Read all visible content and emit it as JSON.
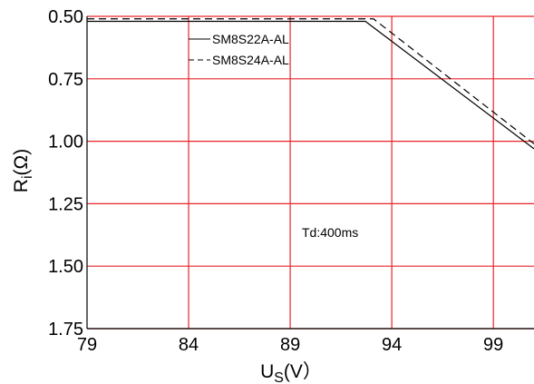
{
  "chart_data": {
    "type": "line",
    "title": "",
    "xlabel_main": "U",
    "xlabel_sub": "S",
    "xlabel_unit": "(V）",
    "ylabel_main": "R",
    "ylabel_sub": "i",
    "ylabel_unit": "(Ω)",
    "xlim": [
      79,
      101
    ],
    "ylim": [
      0.5,
      1.75
    ],
    "y_inverted": true,
    "grid": true,
    "x_ticks": [
      79,
      84,
      89,
      94,
      99
    ],
    "x_tick_labels": [
      "79",
      "84",
      "89",
      "94",
      "99"
    ],
    "y_ticks": [
      0.5,
      0.75,
      1.0,
      1.25,
      1.5,
      1.75
    ],
    "y_tick_labels": [
      "0.50",
      "0.75",
      "1.00",
      "1.25",
      "1.50",
      "1.75"
    ],
    "legend_placement": "top-left",
    "annotation": "Td:400ms",
    "series": [
      {
        "name": "SM8S22A-AL",
        "style": "solid",
        "color": "#000000",
        "x": [
          79,
          92.7,
          101
        ],
        "y": [
          0.52,
          0.52,
          1.03
        ]
      },
      {
        "name": "SM8S24A-AL",
        "style": "dashed",
        "color": "#000000",
        "x": [
          79,
          93.1,
          101
        ],
        "y": [
          0.51,
          0.51,
          1.01
        ]
      }
    ],
    "grid_color": "#e8242a",
    "axis_color": "#000000"
  }
}
